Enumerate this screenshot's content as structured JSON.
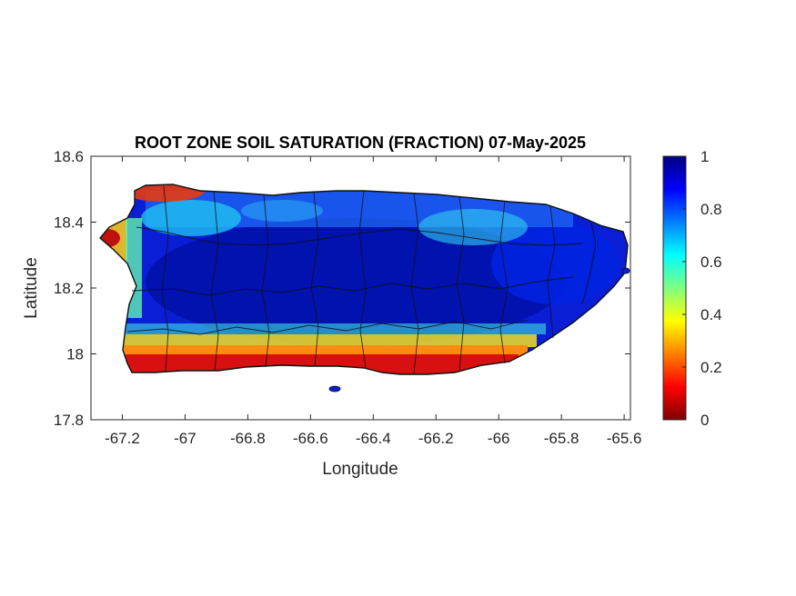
{
  "chart_data": {
    "type": "heatmap",
    "title": "ROOT ZONE SOIL SATURATION (FRACTION) 07-May-2025",
    "xlabel": "Longitude",
    "ylabel": "Latitude",
    "xlim": [
      -67.3,
      -65.58
    ],
    "ylim": [
      17.8,
      18.6
    ],
    "x_ticks": [
      "-67.2",
      "-67",
      "-66.8",
      "-66.6",
      "-66.4",
      "-66.2",
      "-66",
      "-65.8",
      "-65.6"
    ],
    "x_tick_values": [
      -67.2,
      -67.0,
      -66.8,
      -66.6,
      -66.4,
      -66.2,
      -66.0,
      -65.8,
      -65.6
    ],
    "y_ticks": [
      "18.6",
      "18.4",
      "18.2",
      "18"
    ],
    "y_tick_values": [
      18.6,
      18.4,
      18.2,
      18.0
    ],
    "y_ticks_lower": [
      "17.8"
    ],
    "y_tick_lower_values": [
      17.8
    ],
    "colorbar": {
      "colormap": "jet",
      "range": [
        0,
        1
      ],
      "ticks": [
        "1",
        "0.8",
        "0.6",
        "0.4",
        "0.2",
        "0"
      ],
      "tick_values": [
        1,
        0.8,
        0.6,
        0.4,
        0.2,
        0
      ]
    },
    "region": "Puerto Rico",
    "grid": false
  }
}
